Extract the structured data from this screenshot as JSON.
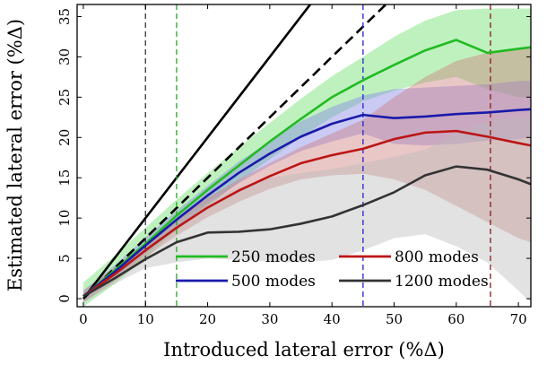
{
  "chart_data": {
    "type": "line",
    "xlabel": "Introduced lateral error (%Δ)",
    "ylabel": "Estimated lateral error (%Δ)",
    "xlim": [
      -1,
      72
    ],
    "ylim": [
      -1,
      36.5
    ],
    "xticks": [
      0,
      10,
      20,
      30,
      40,
      50,
      60,
      70
    ],
    "yticks": [
      0,
      5,
      10,
      15,
      20,
      25,
      30,
      35
    ],
    "grid": false,
    "legend_position": "bottom-right",
    "reference_lines": [
      {
        "kind": "solid",
        "color": "#000000",
        "slope": 1.0
      },
      {
        "kind": "dashed",
        "color": "#000000",
        "slope": 0.75
      }
    ],
    "vertical_markers": [
      {
        "x": 10,
        "color": "#333333"
      },
      {
        "x": 15,
        "color": "#22aa22"
      },
      {
        "x": 45,
        "color": "#2222cc"
      },
      {
        "x": 65.5,
        "color": "#8b1a1a"
      }
    ],
    "x": [
      0,
      5,
      10,
      15,
      20,
      25,
      30,
      35,
      40,
      45,
      50,
      55,
      60,
      65,
      70,
      72
    ],
    "series": [
      {
        "name": "250 modes",
        "color": "#22bb22",
        "band_color": "#66dd66",
        "values": [
          0.3,
          3.5,
          6.8,
          10.3,
          13.5,
          16.5,
          19.5,
          22.3,
          25.0,
          27.1,
          29.0,
          30.8,
          32.1,
          30.5,
          31.0,
          31.2
        ],
        "upper": [
          2.0,
          5.3,
          8.8,
          12.3,
          15.6,
          18.8,
          21.8,
          24.8,
          27.6,
          30.0,
          32.5,
          34.5,
          35.8,
          36.0,
          36.0,
          36.0
        ],
        "lower": [
          -1.0,
          1.8,
          5.0,
          8.5,
          11.5,
          14.5,
          17.3,
          20.0,
          22.5,
          24.5,
          25.8,
          26.8,
          27.5,
          26.0,
          25.0,
          25.0
        ]
      },
      {
        "name": "500 modes",
        "color": "#1a1aaa",
        "band_color": "#8080e6",
        "values": [
          0.3,
          3.3,
          6.6,
          9.8,
          12.8,
          15.6,
          18.0,
          20.1,
          21.7,
          22.8,
          22.4,
          22.6,
          22.9,
          23.1,
          23.4,
          23.5
        ],
        "upper": [
          1.0,
          4.1,
          7.6,
          10.9,
          14.0,
          17.0,
          19.5,
          22.0,
          23.8,
          25.2,
          26.0,
          26.2,
          26.4,
          26.6,
          27.0,
          27.0
        ],
        "lower": [
          -0.5,
          2.5,
          5.6,
          8.7,
          11.7,
          14.3,
          16.5,
          18.3,
          19.5,
          20.5,
          19.2,
          19.0,
          19.2,
          19.6,
          19.8,
          20.0
        ]
      },
      {
        "name": "800 modes",
        "color": "#bb1515",
        "band_color": "#cc7a7a",
        "values": [
          0.3,
          3.0,
          6.0,
          8.8,
          11.3,
          13.4,
          15.2,
          16.8,
          17.8,
          18.6,
          19.8,
          20.6,
          20.8,
          20.1,
          19.3,
          19.0
        ],
        "upper": [
          1.0,
          3.9,
          6.9,
          9.8,
          12.5,
          14.8,
          16.8,
          18.8,
          20.5,
          22.2,
          25.0,
          27.5,
          29.5,
          30.5,
          31.0,
          31.2
        ],
        "lower": [
          -0.5,
          2.1,
          5.1,
          7.8,
          10.1,
          12.0,
          13.6,
          14.8,
          15.3,
          15.5,
          14.8,
          13.5,
          11.5,
          9.5,
          7.5,
          7.0
        ]
      },
      {
        "name": "1200 modes",
        "color": "#333333",
        "band_color": "#bbbbbb",
        "values": [
          0.3,
          2.5,
          4.9,
          7.0,
          8.2,
          8.3,
          8.6,
          9.3,
          10.2,
          11.6,
          13.2,
          15.3,
          16.4,
          16.0,
          14.8,
          14.2
        ],
        "upper": [
          1.0,
          3.3,
          6.0,
          9.5,
          12.0,
          13.8,
          15.0,
          15.6,
          16.1,
          16.8,
          17.6,
          18.5,
          20.5,
          22.0,
          22.5,
          22.6
        ],
        "lower": [
          -0.5,
          1.8,
          3.8,
          4.5,
          5.0,
          4.8,
          4.6,
          4.5,
          4.8,
          6.0,
          7.5,
          8.0,
          6.5,
          4.5,
          1.0,
          -0.5
        ]
      }
    ]
  }
}
